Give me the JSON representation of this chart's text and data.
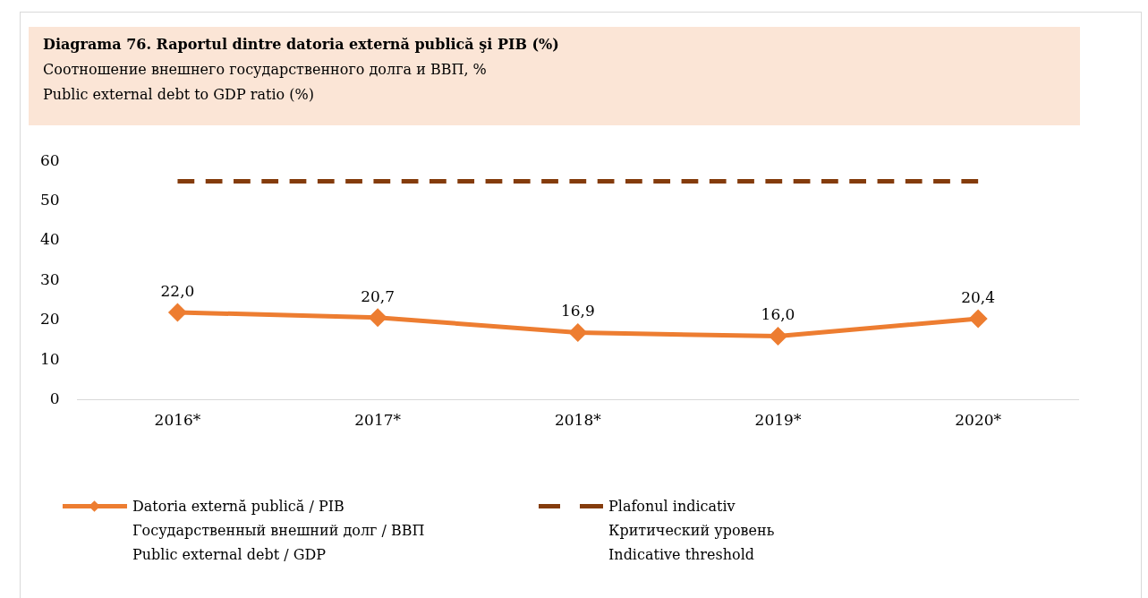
{
  "chart_data": {
    "type": "line",
    "title": "Diagrama 76. Raportul dintre datoria externă publică şi PIB (%)",
    "subtitle": "Соотношение внешнего государственного долга и ВВП, %\nPublic external debt to GDP ratio (%)",
    "categories": [
      "2016*",
      "2017*",
      "2018*",
      "2019*",
      "2020*"
    ],
    "series": [
      {
        "name": "Datoria externă publică / PIB\nГосударственный внешний долг / ВВП\nPublic external debt / GDP",
        "color": "#ed7d31",
        "values": [
          22.0,
          20.7,
          16.9,
          16.0,
          20.4
        ],
        "marker": "diamond",
        "line_style": "solid",
        "value_labels": [
          "22,0",
          "20,7",
          "16,9",
          "16,0",
          "20,4"
        ]
      },
      {
        "name": "Plafonul indicativ\nКритический уровень\nIndicative threshold",
        "color": "#843c0c",
        "values": [
          55,
          55,
          55,
          55,
          55
        ],
        "marker": "none",
        "line_style": "dashed"
      }
    ],
    "ylim": [
      0,
      60
    ],
    "yticks": [
      0,
      10,
      20,
      30,
      40,
      50,
      60
    ],
    "grid": false,
    "legend": "bottom"
  }
}
